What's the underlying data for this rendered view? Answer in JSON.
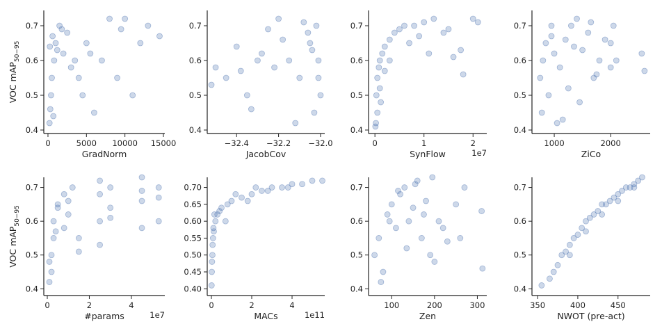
{
  "chart_data": [
    {
      "type": "scatter",
      "xlabel": "GradNorm",
      "ylabel": "VOC mAP",
      "ylabel_sub": "50−95",
      "color": "#4c72b0",
      "xlim": [
        -540,
        15180
      ],
      "xticks": [
        0,
        5000,
        10000,
        15000
      ],
      "ylim": [
        0.39,
        0.744
      ],
      "yticks": [
        0.4,
        0.5,
        0.6,
        0.7
      ],
      "x": [
        200,
        300,
        500,
        800,
        1000,
        1500,
        2000,
        2500,
        3000,
        400,
        600,
        1200,
        3500,
        4000,
        5000,
        6000,
        7000,
        8000,
        9000,
        10000,
        11000,
        12000,
        13000,
        14500,
        700,
        250,
        1800,
        4500,
        5500,
        9500
      ],
      "values": [
        0.42,
        0.46,
        0.55,
        0.6,
        0.65,
        0.7,
        0.62,
        0.68,
        0.58,
        0.5,
        0.67,
        0.63,
        0.6,
        0.55,
        0.65,
        0.45,
        0.6,
        0.72,
        0.55,
        0.72,
        0.5,
        0.65,
        0.7,
        0.67,
        0.44,
        0.64,
        0.69,
        0.5,
        0.62,
        0.69
      ]
    },
    {
      "type": "scatter",
      "xlabel": "JacobCov",
      "color": "#4c72b0",
      "xlim": [
        -32.54,
        -31.98
      ],
      "xticks": [
        {
          "value": -32.4,
          "label": "−32.4"
        },
        {
          "value": -32.2,
          "label": "−32.2"
        },
        {
          "value": -32.0,
          "label": "−32.0"
        }
      ],
      "ylim": [
        0.39,
        0.744
      ],
      "yticks": [
        0.4,
        0.5,
        0.6,
        0.7
      ],
      "x": [
        -32.52,
        -32.5,
        -32.45,
        -32.4,
        -32.35,
        -32.3,
        -32.25,
        -32.2,
        -32.15,
        -32.1,
        -32.05,
        -32.02,
        -32.01,
        -32.0,
        -32.03,
        -32.06,
        -32.12,
        -32.18,
        -32.22,
        -32.28,
        -32.33,
        -32.38,
        -32.08,
        -32.04,
        -32.01
      ],
      "values": [
        0.53,
        0.58,
        0.55,
        0.64,
        0.5,
        0.6,
        0.69,
        0.72,
        0.6,
        0.55,
        0.65,
        0.7,
        0.6,
        0.5,
        0.45,
        0.68,
        0.42,
        0.66,
        0.58,
        0.62,
        0.46,
        0.57,
        0.71,
        0.63,
        0.55
      ]
    },
    {
      "type": "scatter",
      "xlabel": "SynFlow",
      "x_offset": "1e7",
      "color": "#4c72b0",
      "xlim": [
        -0.13,
        2.28
      ],
      "xticks": [
        0,
        1,
        2
      ],
      "ylim": [
        0.39,
        0.744
      ],
      "yticks": [
        0.4,
        0.5,
        0.6,
        0.7
      ],
      "x": [
        0.02,
        0.03,
        0.05,
        0.08,
        0.1,
        0.15,
        0.2,
        0.3,
        0.4,
        0.5,
        0.6,
        0.8,
        1,
        1.2,
        1.4,
        1.6,
        1.8,
        2,
        2.1,
        0.05,
        0.1,
        0.2,
        0.3,
        0.7,
        0.9,
        1.1,
        1.5,
        1.75,
        0.01,
        0.12
      ],
      "values": [
        0.42,
        0.5,
        0.55,
        0.58,
        0.6,
        0.62,
        0.64,
        0.66,
        0.68,
        0.69,
        0.7,
        0.7,
        0.71,
        0.72,
        0.68,
        0.61,
        0.56,
        0.72,
        0.71,
        0.45,
        0.52,
        0.57,
        0.6,
        0.65,
        0.67,
        0.62,
        0.69,
        0.63,
        0.41,
        0.48
      ]
    },
    {
      "type": "scatter",
      "xlabel": "ZiCo",
      "color": "#4c72b0",
      "xlim": [
        605,
        2700
      ],
      "xticks": [
        1000,
        2000
      ],
      "ylim": [
        0.39,
        0.744
      ],
      "yticks": [
        0.4,
        0.5,
        0.6,
        0.7
      ],
      "x": [
        750,
        800,
        850,
        900,
        950,
        1000,
        1100,
        1200,
        1300,
        1400,
        1500,
        1600,
        1700,
        1800,
        1900,
        2000,
        2050,
        2100,
        2550,
        2600,
        780,
        1050,
        1250,
        1450,
        1650,
        1750,
        2000,
        950,
        1350,
        1150
      ],
      "values": [
        0.55,
        0.6,
        0.65,
        0.5,
        0.7,
        0.62,
        0.58,
        0.66,
        0.7,
        0.72,
        0.63,
        0.68,
        0.55,
        0.6,
        0.66,
        0.65,
        0.7,
        0.6,
        0.62,
        0.57,
        0.45,
        0.42,
        0.52,
        0.48,
        0.71,
        0.56,
        0.58,
        0.67,
        0.64,
        0.43
      ]
    },
    {
      "type": "scatter",
      "xlabel": "#params",
      "x_offset": "1e7",
      "ylabel": "VOC mAP",
      "ylabel_sub": "50−95",
      "color": "#4c72b0",
      "xlim": [
        -0.165,
        5.59
      ],
      "xticks": [
        0,
        2,
        4
      ],
      "ylim": [
        0.38,
        0.73
      ],
      "yticks": [
        0.4,
        0.5,
        0.6,
        0.7
      ],
      "x": [
        0.1,
        0.2,
        0.3,
        0.5,
        0.8,
        1,
        1.2,
        1.5,
        2.5,
        2.5,
        2.5,
        3,
        3,
        4.5,
        4.5,
        4.5,
        5.3,
        5.3,
        0.2,
        0.3,
        0.1,
        0.8,
        1.5,
        2.5,
        4.5,
        0.5,
        1,
        3,
        5.3,
        0.4
      ],
      "values": [
        0.42,
        0.5,
        0.6,
        0.65,
        0.68,
        0.62,
        0.7,
        0.55,
        0.6,
        0.68,
        0.72,
        0.64,
        0.7,
        0.58,
        0.66,
        0.73,
        0.6,
        0.7,
        0.45,
        0.55,
        0.48,
        0.58,
        0.51,
        0.53,
        0.69,
        0.64,
        0.66,
        0.61,
        0.67,
        0.57
      ]
    },
    {
      "type": "scatter",
      "xlabel": "MACs",
      "x_offset": "1e11",
      "color": "#4c72b0",
      "xlim": [
        -0.207,
        5.62
      ],
      "xticks": [
        0,
        2,
        4
      ],
      "ylim": [
        0.38,
        0.73
      ],
      "yticks": [
        {
          "value": 0.4,
          "label": "0.40"
        },
        0.45,
        {
          "value": 0.5,
          "label": "0.50"
        },
        0.55,
        {
          "value": 0.6,
          "label": "0.60"
        },
        0.65,
        {
          "value": 0.7,
          "label": "0.70"
        }
      ],
      "x": [
        0.01,
        0.02,
        0.05,
        0.08,
        0.1,
        0.2,
        0.3,
        0.5,
        0.8,
        1,
        1.5,
        2,
        2.5,
        3,
        3.5,
        4,
        4.5,
        5,
        5.5,
        0.03,
        0.15,
        0.4,
        0.7,
        1.2,
        1.8,
        2.2,
        2.8,
        3.8,
        0.06,
        0.12
      ],
      "values": [
        0.41,
        0.45,
        0.5,
        0.55,
        0.58,
        0.6,
        0.62,
        0.64,
        0.65,
        0.66,
        0.67,
        0.68,
        0.69,
        0.7,
        0.7,
        0.71,
        0.71,
        0.72,
        0.72,
        0.48,
        0.62,
        0.63,
        0.6,
        0.68,
        0.66,
        0.7,
        0.69,
        0.7,
        0.53,
        0.57
      ]
    },
    {
      "type": "scatter",
      "xlabel": "Zen",
      "color": "#4c72b0",
      "xlim": [
        46,
        322
      ],
      "xticks": [
        100,
        200,
        300
      ],
      "ylim": [
        0.38,
        0.73
      ],
      "yticks": [
        0.4,
        0.5,
        0.6,
        0.7
      ],
      "x": [
        60,
        70,
        80,
        90,
        100,
        110,
        120,
        130,
        140,
        150,
        160,
        170,
        180,
        190,
        200,
        210,
        220,
        230,
        250,
        260,
        270,
        310,
        312,
        75,
        95,
        115,
        135,
        155,
        175,
        195
      ],
      "values": [
        0.5,
        0.55,
        0.45,
        0.62,
        0.65,
        0.58,
        0.68,
        0.7,
        0.6,
        0.64,
        0.72,
        0.55,
        0.66,
        0.5,
        0.48,
        0.6,
        0.58,
        0.54,
        0.65,
        0.55,
        0.7,
        0.63,
        0.46,
        0.42,
        0.6,
        0.69,
        0.52,
        0.71,
        0.62,
        0.73
      ]
    },
    {
      "type": "scatter",
      "xlabel": "NWOT (pre-act)",
      "color": "#4c72b0",
      "xlim": [
        343,
        490
      ],
      "xticks": [
        350,
        400,
        450
      ],
      "ylim": [
        0.38,
        0.73
      ],
      "yticks": [
        0.4,
        0.5,
        0.6,
        0.7
      ],
      "x": [
        355,
        365,
        370,
        375,
        380,
        385,
        390,
        395,
        400,
        405,
        410,
        415,
        420,
        425,
        430,
        435,
        440,
        445,
        450,
        455,
        460,
        465,
        470,
        475,
        480,
        390,
        410,
        430,
        450,
        470
      ],
      "values": [
        0.41,
        0.43,
        0.45,
        0.47,
        0.5,
        0.51,
        0.53,
        0.55,
        0.56,
        0.58,
        0.6,
        0.61,
        0.62,
        0.63,
        0.65,
        0.65,
        0.66,
        0.67,
        0.68,
        0.69,
        0.7,
        0.7,
        0.71,
        0.72,
        0.73,
        0.5,
        0.57,
        0.62,
        0.66,
        0.7
      ]
    }
  ]
}
